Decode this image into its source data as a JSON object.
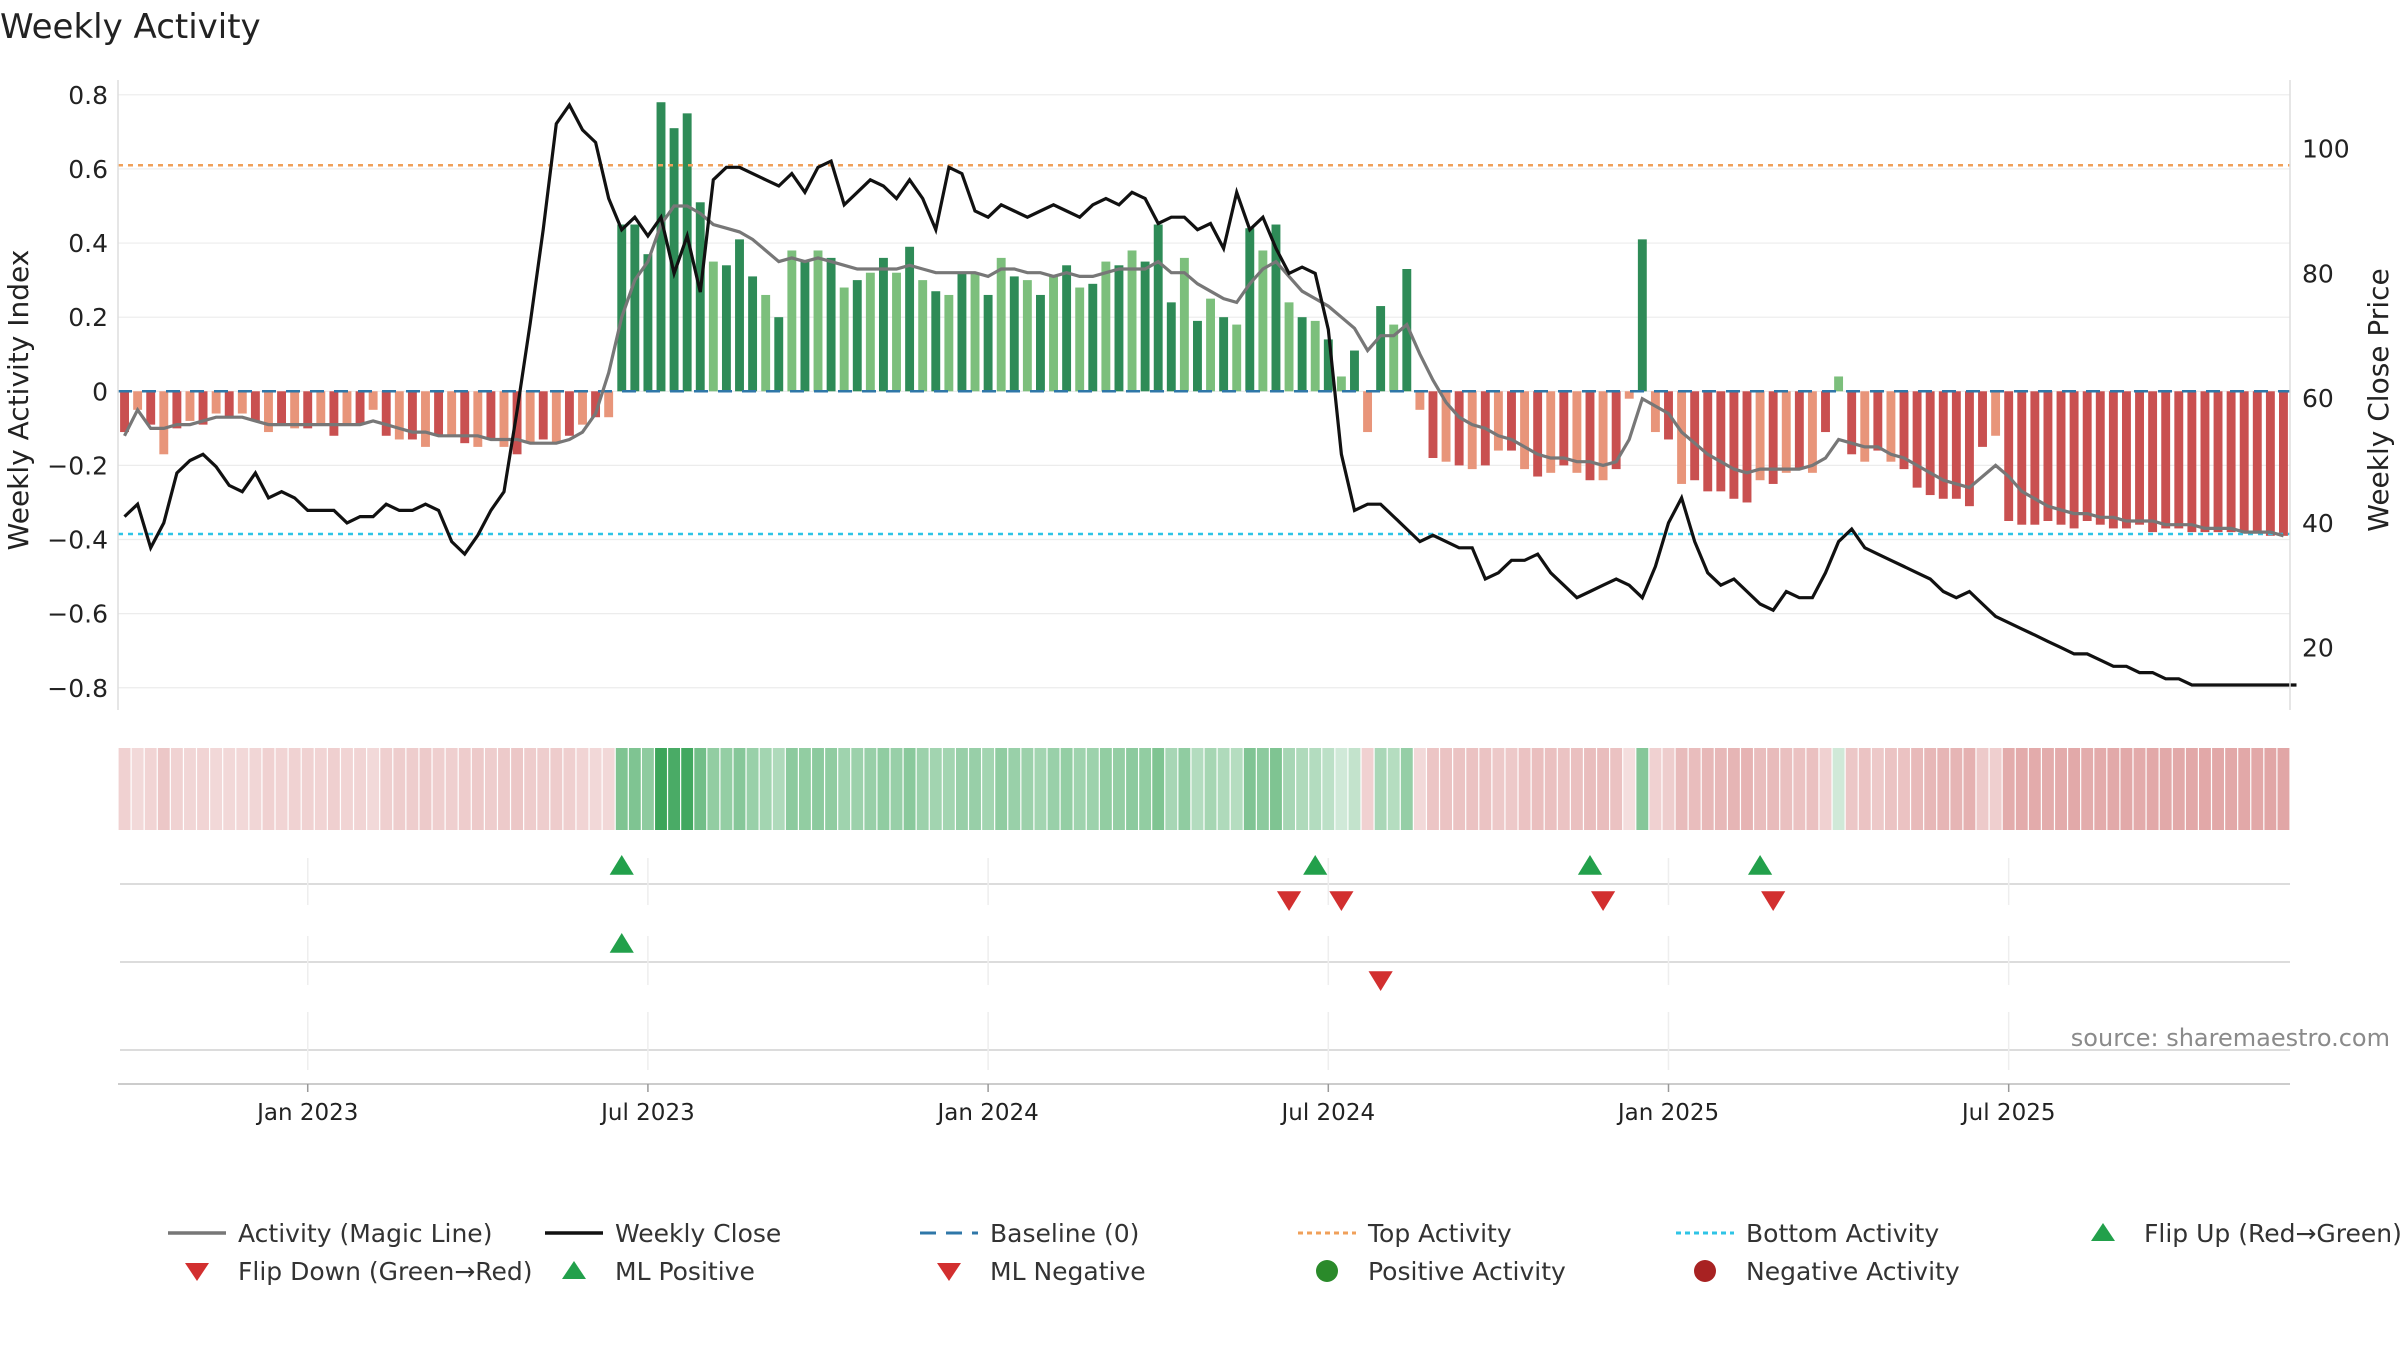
{
  "chart_data": {
    "type": "bar+line",
    "title": "Weekly Activity",
    "ylabel_left": "Weekly Activity Index",
    "ylabel_right": "Weekly Close Price",
    "source": "source: sharemaestro.com",
    "ylim_left": [
      -0.86,
      0.84
    ],
    "ylim_right": [
      10,
      111
    ],
    "yticks_left": [
      {
        "v": 0.8,
        "label": "0.8"
      },
      {
        "v": 0.6,
        "label": "0.6"
      },
      {
        "v": 0.4,
        "label": "0.4"
      },
      {
        "v": 0.2,
        "label": "0.2"
      },
      {
        "v": 0,
        "label": "0"
      },
      {
        "v": -0.2,
        "label": "−0.2"
      },
      {
        "v": -0.4,
        "label": "−0.4"
      },
      {
        "v": -0.6,
        "label": "−0.6"
      },
      {
        "v": -0.8,
        "label": "−0.8"
      }
    ],
    "yticks_right": [
      {
        "v": 100,
        "label": "100"
      },
      {
        "v": 80,
        "label": "80"
      },
      {
        "v": 60,
        "label": "60"
      },
      {
        "v": 40,
        "label": "40"
      },
      {
        "v": 20,
        "label": "20"
      }
    ],
    "x_ticks": [
      {
        "week": 14,
        "label": "Jan 2023"
      },
      {
        "week": 40,
        "label": "Jul 2023"
      },
      {
        "week": 66,
        "label": "Jan 2024"
      },
      {
        "week": 92,
        "label": "Jul 2024"
      },
      {
        "week": 118,
        "label": "Jan 2025"
      },
      {
        "week": 144,
        "label": "Jul 2025"
      }
    ],
    "top_activity": 0.61,
    "bottom_activity": -0.385,
    "activity": [
      -0.11,
      -0.05,
      -0.09,
      -0.17,
      -0.1,
      -0.08,
      -0.09,
      -0.06,
      -0.07,
      -0.06,
      -0.08,
      -0.11,
      -0.09,
      -0.1,
      -0.1,
      -0.09,
      -0.12,
      -0.09,
      -0.09,
      -0.05,
      -0.12,
      -0.13,
      -0.13,
      -0.15,
      -0.12,
      -0.12,
      -0.14,
      -0.15,
      -0.13,
      -0.15,
      -0.17,
      -0.14,
      -0.13,
      -0.14,
      -0.12,
      -0.09,
      -0.07,
      -0.07,
      0.45,
      0.45,
      0.37,
      0.78,
      0.71,
      0.75,
      0.51,
      0.35,
      0.34,
      0.41,
      0.31,
      0.26,
      0.2,
      0.38,
      0.35,
      0.38,
      0.36,
      0.28,
      0.3,
      0.32,
      0.36,
      0.32,
      0.39,
      0.3,
      0.27,
      0.26,
      0.32,
      0.32,
      0.26,
      0.36,
      0.31,
      0.3,
      0.26,
      0.31,
      0.34,
      0.28,
      0.29,
      0.35,
      0.34,
      0.38,
      0.35,
      0.45,
      0.24,
      0.36,
      0.19,
      0.25,
      0.2,
      0.18,
      0.44,
      0.38,
      0.45,
      0.24,
      0.2,
      0.19,
      0.14,
      0.04,
      0.11,
      -0.11,
      0.23,
      0.18,
      0.33,
      -0.05,
      -0.18,
      -0.19,
      -0.2,
      -0.21,
      -0.2,
      -0.16,
      -0.16,
      -0.21,
      -0.23,
      -0.22,
      -0.2,
      -0.22,
      -0.24,
      -0.24,
      -0.21,
      -0.02,
      0.41,
      -0.11,
      -0.13,
      -0.25,
      -0.24,
      -0.27,
      -0.27,
      -0.29,
      -0.3,
      -0.24,
      -0.25,
      -0.22,
      -0.21,
      -0.22,
      -0.11,
      0.04,
      -0.17,
      -0.19,
      -0.16,
      -0.19,
      -0.21,
      -0.26,
      -0.28,
      -0.29,
      -0.29,
      -0.31,
      -0.15,
      -0.12,
      -0.35,
      -0.36,
      -0.36,
      -0.35,
      -0.36,
      -0.37,
      -0.35,
      -0.36,
      -0.37,
      -0.37,
      -0.36,
      -0.38,
      -0.37,
      -0.37,
      -0.38,
      -0.38,
      -0.38,
      -0.38,
      -0.38,
      -0.38,
      -0.39,
      -0.39
    ],
    "magic_line": [
      -0.12,
      -0.05,
      -0.1,
      -0.1,
      -0.09,
      -0.09,
      -0.08,
      -0.07,
      -0.07,
      -0.07,
      -0.08,
      -0.09,
      -0.09,
      -0.09,
      -0.09,
      -0.09,
      -0.09,
      -0.09,
      -0.09,
      -0.08,
      -0.09,
      -0.1,
      -0.11,
      -0.11,
      -0.12,
      -0.12,
      -0.12,
      -0.12,
      -0.13,
      -0.13,
      -0.13,
      -0.14,
      -0.14,
      -0.14,
      -0.13,
      -0.11,
      -0.06,
      0.05,
      0.2,
      0.3,
      0.35,
      0.45,
      0.5,
      0.5,
      0.48,
      0.45,
      0.44,
      0.43,
      0.41,
      0.38,
      0.35,
      0.36,
      0.35,
      0.36,
      0.35,
      0.34,
      0.33,
      0.33,
      0.33,
      0.33,
      0.34,
      0.33,
      0.32,
      0.32,
      0.32,
      0.32,
      0.31,
      0.33,
      0.33,
      0.32,
      0.32,
      0.31,
      0.32,
      0.31,
      0.31,
      0.32,
      0.33,
      0.33,
      0.33,
      0.35,
      0.32,
      0.32,
      0.29,
      0.27,
      0.25,
      0.24,
      0.29,
      0.33,
      0.35,
      0.31,
      0.27,
      0.25,
      0.23,
      0.2,
      0.17,
      0.11,
      0.15,
      0.15,
      0.18,
      0.1,
      0.03,
      -0.03,
      -0.07,
      -0.09,
      -0.1,
      -0.12,
      -0.13,
      -0.15,
      -0.17,
      -0.18,
      -0.18,
      -0.19,
      -0.19,
      -0.2,
      -0.19,
      -0.13,
      -0.02,
      -0.04,
      -0.06,
      -0.11,
      -0.14,
      -0.17,
      -0.19,
      -0.21,
      -0.22,
      -0.21,
      -0.21,
      -0.21,
      -0.21,
      -0.2,
      -0.18,
      -0.13,
      -0.14,
      -0.15,
      -0.15,
      -0.17,
      -0.18,
      -0.2,
      -0.22,
      -0.24,
      -0.25,
      -0.26,
      -0.23,
      -0.2,
      -0.23,
      -0.27,
      -0.29,
      -0.31,
      -0.32,
      -0.33,
      -0.33,
      -0.34,
      -0.34,
      -0.35,
      -0.35,
      -0.35,
      -0.36,
      -0.36,
      -0.36,
      -0.37,
      -0.37,
      -0.37,
      -0.38,
      -0.38,
      -0.38,
      -0.39
    ],
    "weekly_close": [
      41,
      43,
      36,
      40,
      48,
      50,
      51,
      49,
      46,
      45,
      48,
      44,
      45,
      44,
      42,
      42,
      42,
      40,
      41,
      41,
      43,
      42,
      42,
      43,
      42,
      37,
      35,
      38,
      42,
      45,
      58,
      72,
      87,
      104,
      107,
      103,
      101,
      92,
      87,
      89,
      86,
      89,
      80,
      86,
      77,
      95,
      97,
      97,
      96,
      95,
      94,
      96,
      93,
      97,
      98,
      91,
      93,
      95,
      94,
      92,
      95,
      92,
      87,
      97,
      96,
      90,
      89,
      91,
      90,
      89,
      90,
      91,
      90,
      89,
      91,
      92,
      91,
      93,
      92,
      88,
      89,
      89,
      87,
      88,
      84,
      93,
      87,
      89,
      84,
      80,
      81,
      80,
      71,
      51,
      42,
      43,
      43,
      41,
      39,
      37,
      38,
      37,
      36,
      36,
      31,
      32,
      34,
      34,
      35,
      32,
      30,
      28,
      29,
      30,
      31,
      30,
      28,
      33,
      40,
      44,
      37,
      32,
      30,
      31,
      29,
      27,
      26,
      29,
      28,
      28,
      32,
      37,
      39,
      36,
      35,
      34,
      33,
      32,
      31,
      29,
      28,
      29,
      27,
      25,
      24,
      23,
      22,
      21,
      20,
      19,
      19,
      18,
      17,
      17,
      16,
      16,
      15,
      15,
      14,
      14,
      14,
      14,
      14,
      14,
      14,
      14,
      14
    ],
    "flip_up": [
      38,
      91,
      112,
      125
    ],
    "flip_down": [
      89,
      93,
      113,
      126
    ],
    "ml_positive": [
      38
    ],
    "ml_negative": [
      96
    ],
    "legend": [
      {
        "label": "Activity (Magic Line)",
        "marker": "line",
        "color": "#777777"
      },
      {
        "label": "Weekly Close",
        "marker": "line",
        "color": "#111111"
      },
      {
        "label": "Baseline (0)",
        "marker": "dash",
        "color": "#2f77a8"
      },
      {
        "label": "Top Activity",
        "marker": "dot-line",
        "color": "#f0a05a"
      },
      {
        "label": "Bottom Activity",
        "marker": "dot-line",
        "color": "#2ec4e6"
      },
      {
        "label": "Flip Up (Red→Green)",
        "marker": "tri-up",
        "color": "#22a04b"
      },
      {
        "label": "Flip Down (Green→Red)",
        "marker": "tri-down",
        "color": "#d22f2f"
      },
      {
        "label": "ML Positive",
        "marker": "tri-up",
        "color": "#22a04b"
      },
      {
        "label": "ML Negative",
        "marker": "tri-down",
        "color": "#d22f2f"
      },
      {
        "label": "Positive Activity",
        "marker": "circle",
        "color": "#2a8a2a"
      },
      {
        "label": "Negative Activity",
        "marker": "circle",
        "color": "#a82222"
      }
    ]
  }
}
